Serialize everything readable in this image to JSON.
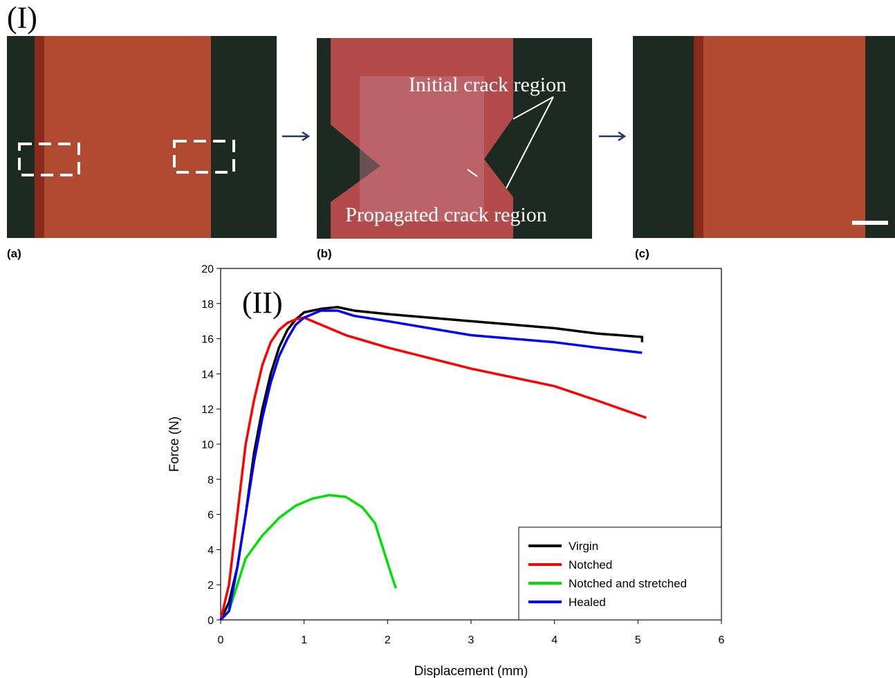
{
  "figure_label": "(I)",
  "panels": [
    {
      "label": "(a)"
    },
    {
      "label": "(b)",
      "annotations": [
        "Initial crack region",
        "Propagated crack region"
      ]
    },
    {
      "label": "(c)"
    }
  ],
  "chart_data": {
    "type": "line",
    "title": "(II)",
    "x_label": "Displacement (mm)",
    "y_label": "Force (N)",
    "xlim": [
      0,
      6
    ],
    "ylim": [
      0,
      20
    ],
    "xticks": [
      0,
      1,
      2,
      3,
      4,
      5,
      6
    ],
    "yticks": [
      0,
      2,
      4,
      6,
      8,
      10,
      12,
      14,
      16,
      18,
      20
    ],
    "legend": "lower right",
    "series": [
      {
        "name": "Virgin",
        "color": "#000000",
        "x": [
          0,
          0.1,
          0.2,
          0.3,
          0.4,
          0.5,
          0.6,
          0.7,
          0.8,
          0.9,
          1.0,
          1.2,
          1.4,
          1.6,
          2,
          2.5,
          3,
          3.5,
          4,
          4.5,
          5.05,
          5.05
        ],
        "values": [
          0,
          1,
          3,
          6,
          9.5,
          12,
          14,
          15.5,
          16.5,
          17.1,
          17.5,
          17.7,
          17.8,
          17.6,
          17.4,
          17.2,
          17,
          16.8,
          16.6,
          16.3,
          16.1,
          15.8
        ]
      },
      {
        "name": "Notched",
        "color": "#ff0000",
        "x": [
          0,
          0.1,
          0.2,
          0.3,
          0.4,
          0.5,
          0.6,
          0.7,
          0.8,
          0.9,
          1.0,
          1.2,
          1.5,
          2,
          2.5,
          3,
          3.5,
          4,
          4.5,
          5.1
        ],
        "values": [
          0,
          2,
          6,
          10,
          12.5,
          14.5,
          15.8,
          16.5,
          16.9,
          17.1,
          17.2,
          16.8,
          16.2,
          15.5,
          14.9,
          14.3,
          13.8,
          13.3,
          12.5,
          11.5
        ]
      },
      {
        "name": "Notched and stretched",
        "color": "#00e000",
        "x": [
          0,
          0.1,
          0.2,
          0.3,
          0.5,
          0.7,
          0.9,
          1.1,
          1.3,
          1.5,
          1.7,
          1.85,
          1.95,
          2.05,
          2.1
        ],
        "values": [
          0,
          0.5,
          2,
          3.5,
          4.8,
          5.8,
          6.5,
          6.9,
          7.1,
          7,
          6.4,
          5.5,
          4,
          2.5,
          1.8
        ]
      },
      {
        "name": "Healed",
        "color": "#0000ff",
        "x": [
          0,
          0.1,
          0.2,
          0.3,
          0.4,
          0.5,
          0.6,
          0.7,
          0.8,
          0.9,
          1.0,
          1.2,
          1.4,
          1.6,
          2,
          2.5,
          3,
          3.5,
          4,
          4.5,
          5.05
        ],
        "values": [
          0,
          0.5,
          3,
          6,
          9,
          11.5,
          13.5,
          15,
          16,
          16.8,
          17.2,
          17.6,
          17.6,
          17.3,
          17,
          16.6,
          16.2,
          16,
          15.8,
          15.5,
          15.2
        ]
      }
    ]
  }
}
